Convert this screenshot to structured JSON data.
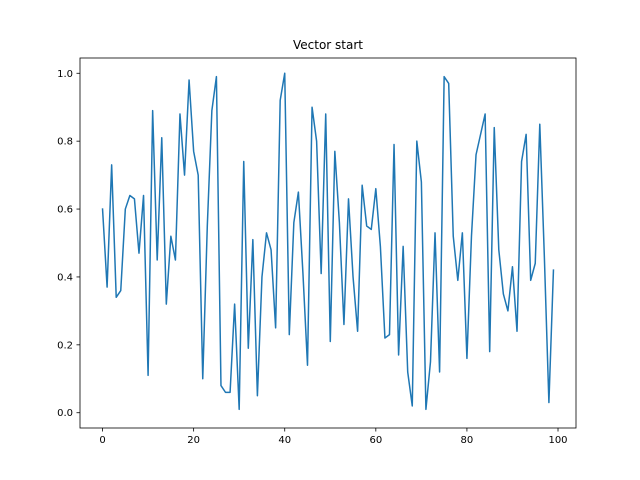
{
  "chart_data": {
    "type": "line",
    "title": "Vector start",
    "xlabel": "",
    "ylabel": "",
    "xlim": [
      -4.95,
      103.95
    ],
    "ylim": [
      -0.045,
      1.045
    ],
    "xticks": [
      0,
      20,
      40,
      60,
      80,
      100
    ],
    "yticks": [
      0.0,
      0.2,
      0.4,
      0.6,
      0.8,
      1.0
    ],
    "xtick_labels": [
      "0",
      "20",
      "40",
      "60",
      "80",
      "100"
    ],
    "ytick_labels": [
      "0.0",
      "0.2",
      "0.4",
      "0.6",
      "0.8",
      "1.0"
    ],
    "grid": false,
    "line_color": "#1f77b4",
    "series": [
      {
        "values": [
          0.6,
          0.37,
          0.73,
          0.34,
          0.36,
          0.6,
          0.64,
          0.63,
          0.47,
          0.64,
          0.11,
          0.89,
          0.45,
          0.81,
          0.32,
          0.52,
          0.45,
          0.88,
          0.7,
          0.98,
          0.77,
          0.7,
          0.1,
          0.55,
          0.89,
          0.99,
          0.08,
          0.06,
          0.06,
          0.32,
          0.01,
          0.74,
          0.19,
          0.51,
          0.05,
          0.4,
          0.53,
          0.48,
          0.25,
          0.92,
          1.0,
          0.23,
          0.56,
          0.65,
          0.41,
          0.14,
          0.9,
          0.8,
          0.41,
          0.88,
          0.21,
          0.77,
          0.56,
          0.26,
          0.63,
          0.4,
          0.24,
          0.67,
          0.55,
          0.54,
          0.66,
          0.49,
          0.22,
          0.23,
          0.79,
          0.17,
          0.49,
          0.12,
          0.02,
          0.8,
          0.68,
          0.01,
          0.15,
          0.53,
          0.12,
          0.99,
          0.97,
          0.52,
          0.39,
          0.53,
          0.16,
          0.52,
          0.76,
          0.82,
          0.88,
          0.18,
          0.84,
          0.48,
          0.35,
          0.3,
          0.43,
          0.24,
          0.74,
          0.82,
          0.39,
          0.44,
          0.85,
          0.46,
          0.03,
          0.42
        ]
      }
    ]
  }
}
